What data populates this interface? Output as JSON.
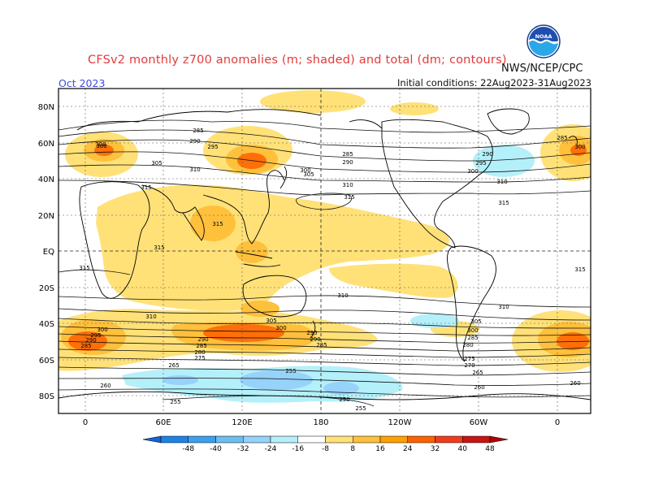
{
  "header": {
    "title": "CFSv2 monthly z700 anomalies (m; shaded) and total (dm; contours)",
    "month": "Oct 2023",
    "agency": "NWS/NCEP/CPC",
    "initial_conditions": "Initial conditions: 22Aug2023-31Aug2023",
    "logo_text": "NOAA"
  },
  "map": {
    "lat_labels": [
      "80N",
      "60N",
      "40N",
      "20N",
      "EQ",
      "20S",
      "40S",
      "60S",
      "80S"
    ],
    "lon_labels": [
      "0",
      "60E",
      "120E",
      "180",
      "120W",
      "60W",
      "0"
    ],
    "contour_labels": [
      "285",
      "290",
      "295",
      "300",
      "305",
      "310",
      "315",
      "280",
      "275",
      "270",
      "265",
      "260",
      "255",
      "250"
    ]
  },
  "colorbar": {
    "ticks": [
      "-48",
      "-40",
      "-32",
      "-24",
      "-16",
      "-8",
      "8",
      "16",
      "24",
      "32",
      "40",
      "48"
    ],
    "colors": [
      "#1464d2",
      "#1e82e6",
      "#3ca0f0",
      "#6ebef0",
      "#96d2fa",
      "#b4f0fa",
      "#ffffff",
      "#ffe178",
      "#ffc03c",
      "#ffa000",
      "#ff6000",
      "#f03c1e",
      "#c81414",
      "#b40000"
    ]
  },
  "colors": {
    "title": "#e23b3b",
    "month": "#3d4bd6",
    "positive_light": "#ffe178",
    "positive_mid": "#ffc03c",
    "positive_strong": "#ff6000",
    "negative_light": "#b4f0fa",
    "negative_mid": "#96d2fa"
  }
}
